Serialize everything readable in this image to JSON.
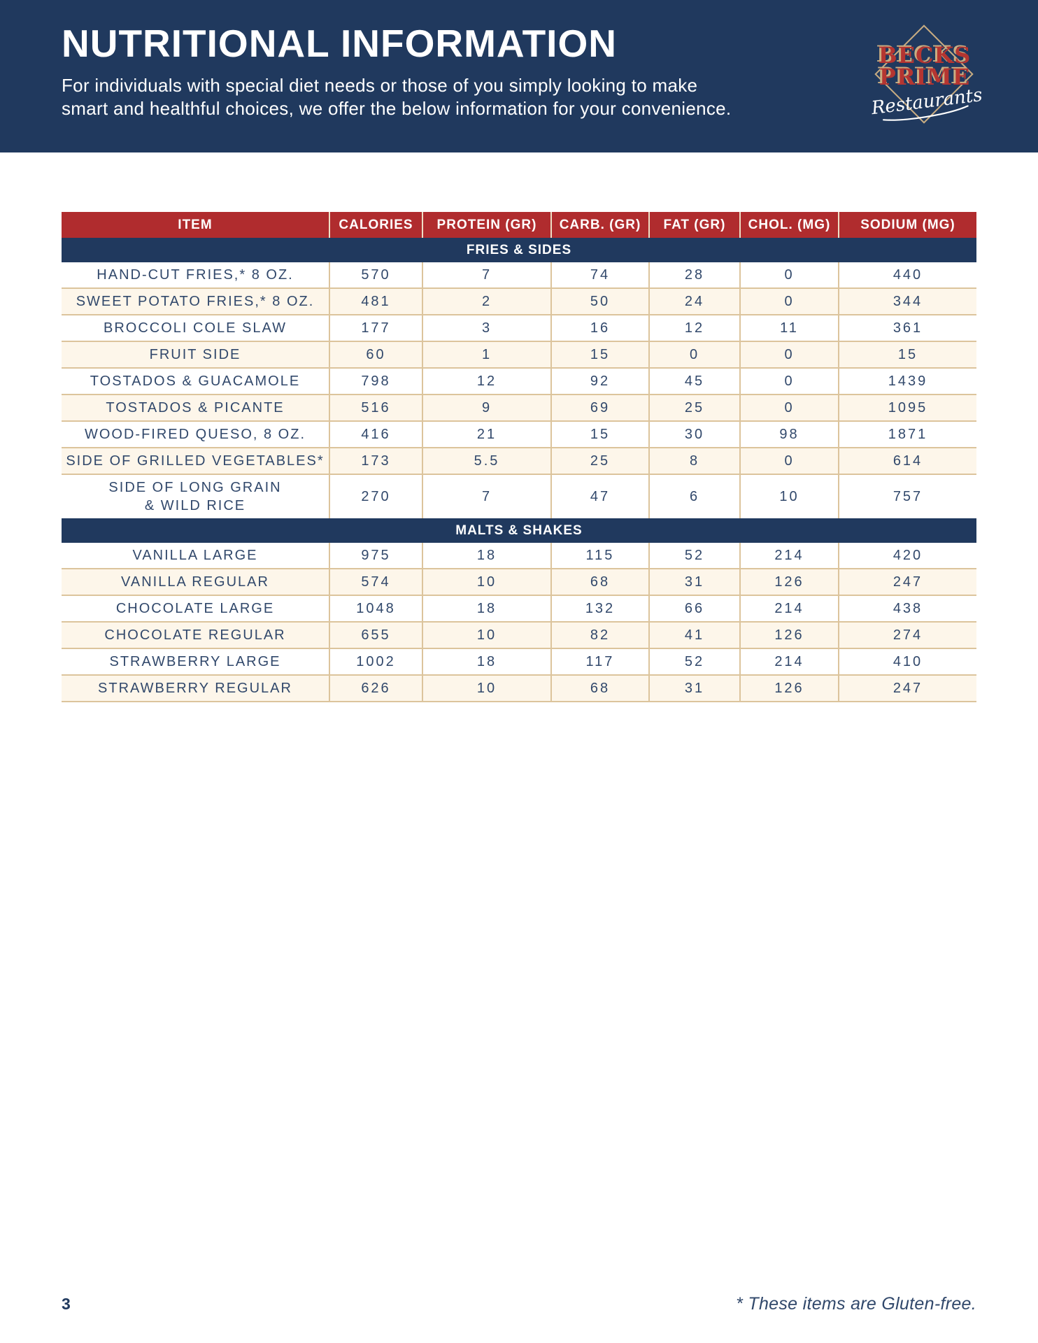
{
  "header": {
    "title": "NUTRITIONAL INFORMATION",
    "subtitle_line1": "For individuals with special diet needs or those of you simply looking to make",
    "subtitle_line2": "smart and healthful choices, we offer the below information for your convenience.",
    "logo": {
      "line1": "BECKS",
      "line2": "PRIME",
      "script": "Restaurants"
    }
  },
  "table": {
    "columns": [
      "ITEM",
      "CALORIES",
      "PROTEIN (GR)",
      "CARB. (GR)",
      "FAT (GR)",
      "CHOL. (MG)",
      "SODIUM (MG)"
    ],
    "sections": [
      {
        "name": "FRIES & SIDES",
        "rows": [
          {
            "item": "HAND-CUT FRIES,* 8 OZ.",
            "values": [
              "570",
              "7",
              "74",
              "28",
              "0",
              "440"
            ]
          },
          {
            "item": "SWEET POTATO FRIES,* 8 OZ.",
            "values": [
              "481",
              "2",
              "50",
              "24",
              "0",
              "344"
            ]
          },
          {
            "item": "BROCCOLI COLE SLAW",
            "values": [
              "177",
              "3",
              "16",
              "12",
              "11",
              "361"
            ]
          },
          {
            "item": "FRUIT SIDE",
            "values": [
              "60",
              "1",
              "15",
              "0",
              "0",
              "15"
            ]
          },
          {
            "item": "TOSTADOS & GUACAMOLE",
            "values": [
              "798",
              "12",
              "92",
              "45",
              "0",
              "1439"
            ]
          },
          {
            "item": "TOSTADOS & PICANTE",
            "values": [
              "516",
              "9",
              "69",
              "25",
              "0",
              "1095"
            ]
          },
          {
            "item": "WOOD-FIRED QUESO, 8 OZ.",
            "values": [
              "416",
              "21",
              "15",
              "30",
              "98",
              "1871"
            ]
          },
          {
            "item": "SIDE OF GRILLED VEGETABLES*",
            "values": [
              "173",
              "5.5",
              "25",
              "8",
              "0",
              "614"
            ]
          },
          {
            "item": "SIDE OF LONG GRAIN\n& WILD RICE",
            "values": [
              "270",
              "7",
              "47",
              "6",
              "10",
              "757"
            ]
          }
        ]
      },
      {
        "name": "MALTS & SHAKES",
        "rows": [
          {
            "item": "VANILLA LARGE",
            "values": [
              "975",
              "18",
              "115",
              "52",
              "214",
              "420"
            ]
          },
          {
            "item": "VANILLA REGULAR",
            "values": [
              "574",
              "10",
              "68",
              "31",
              "126",
              "247"
            ]
          },
          {
            "item": "CHOCOLATE LARGE",
            "values": [
              "1048",
              "18",
              "132",
              "66",
              "214",
              "438"
            ]
          },
          {
            "item": "CHOCOLATE REGULAR",
            "values": [
              "655",
              "10",
              "82",
              "41",
              "126",
              "274"
            ]
          },
          {
            "item": "STRAWBERRY LARGE",
            "values": [
              "1002",
              "18",
              "117",
              "52",
              "214",
              "410"
            ]
          },
          {
            "item": "STRAWBERRY REGULAR",
            "values": [
              "626",
              "10",
              "68",
              "31",
              "126",
              "247"
            ]
          }
        ]
      }
    ]
  },
  "page": {
    "number": "3",
    "footnote": "* These items are Gluten-free."
  },
  "colors": {
    "navy": "#20395e",
    "red": "#b02c2e",
    "cream": "#fdf6ea",
    "tan": "#dcc49c",
    "text_navy": "#31486b",
    "logo_tan": "#c9ad82",
    "logo_red": "#b43531"
  }
}
